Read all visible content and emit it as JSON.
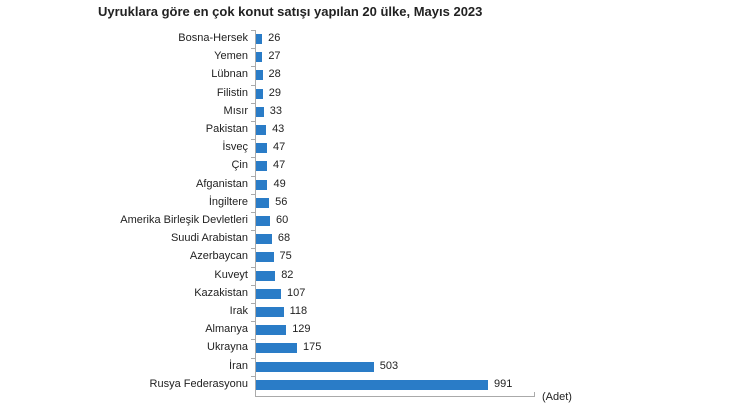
{
  "chart_data": {
    "type": "bar",
    "orientation": "horizontal",
    "title": "Uyruklara göre en çok konut satışı yapılan 20 ülke, Mayıs 2023",
    "xlabel": "(Adet)",
    "ylabel": "",
    "categories": [
      "Bosna-Hersek",
      "Yemen",
      "Lübnan",
      "Filistin",
      "Mısır",
      "Pakistan",
      "İsveç",
      "Çin",
      "Afganistan",
      "İngiltere",
      "Amerika Birleşik Devletleri",
      "Suudi Arabistan",
      "Azerbaycan",
      "Kuveyt",
      "Kazakistan",
      "Irak",
      "Almanya",
      "Ukrayna",
      "İran",
      "Rusya Federasyonu"
    ],
    "values": [
      26,
      27,
      28,
      29,
      33,
      43,
      47,
      47,
      49,
      56,
      60,
      68,
      75,
      82,
      107,
      118,
      129,
      175,
      503,
      991
    ],
    "bar_color": "#2a7cc7",
    "grid": false,
    "data_labels": true,
    "xlim": [
      0,
      1200
    ]
  }
}
